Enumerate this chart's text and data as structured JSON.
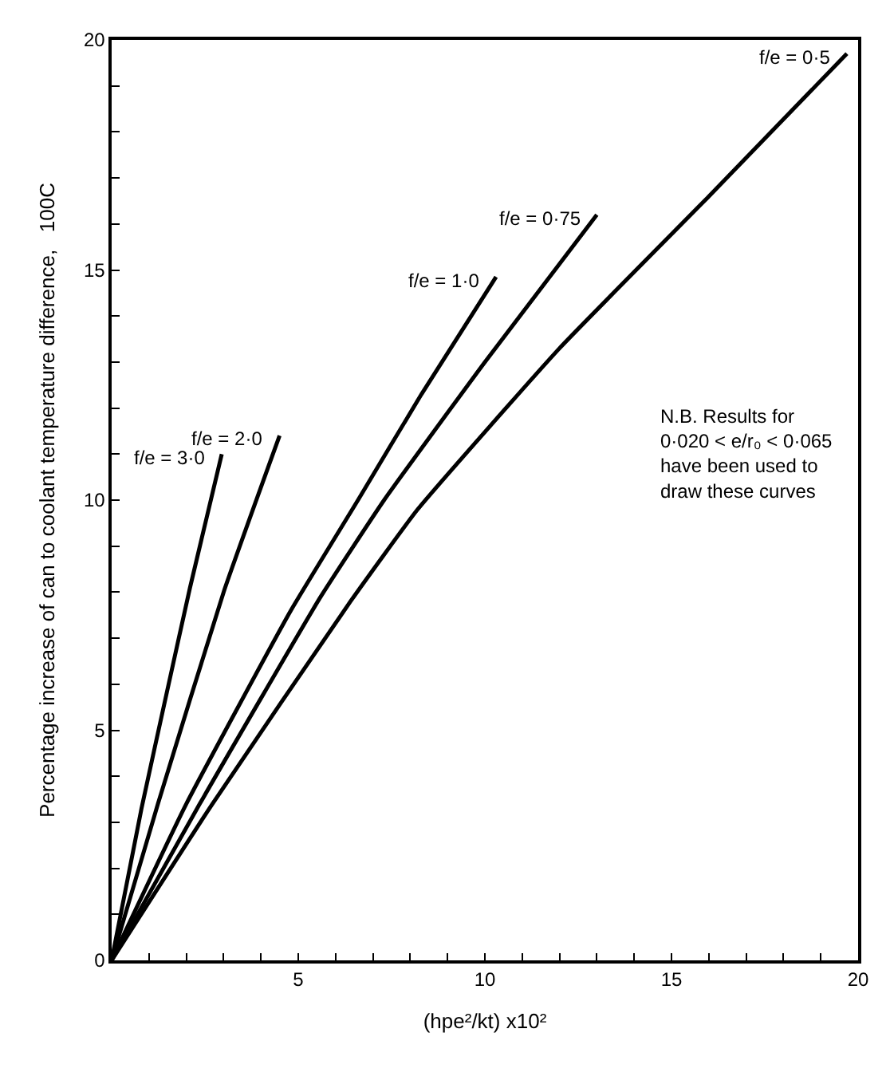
{
  "chart_data": {
    "type": "line",
    "xlabel": "(hpe²/kt) x10²",
    "ylabel": "Percentage increase of can to coolant temperature difference,   100C",
    "series": [
      {
        "name": "f/e = 3·0",
        "color": "#000000",
        "x": [
          0,
          0.8,
          1.5,
          2.1,
          2.95
        ],
        "values": [
          0,
          3.3,
          5.9,
          8.1,
          11.0
        ]
      },
      {
        "name": "f/e = 2·0",
        "color": "#000000",
        "x": [
          0,
          1.24,
          3.0,
          4.5
        ],
        "values": [
          0,
          3.4,
          8.0,
          11.4
        ]
      },
      {
        "name": "f/e = 1·0",
        "color": "#000000",
        "x": [
          0,
          2.0,
          4.8,
          6.6,
          8.3,
          10.3
        ],
        "values": [
          0,
          3.4,
          7.6,
          10.0,
          12.3,
          14.85
        ]
      },
      {
        "name": "f/e = 0·75",
        "color": "#000000",
        "x": [
          0,
          2.36,
          5.6,
          7.3,
          10.0,
          13.0
        ],
        "values": [
          0,
          3.4,
          7.9,
          10.0,
          13.0,
          16.2
        ]
      },
      {
        "name": "f/e = 0·5",
        "color": "#000000",
        "x": [
          0,
          2.7,
          6.4,
          8.2,
          12.0,
          16.0,
          19.7
        ],
        "values": [
          0,
          3.4,
          7.8,
          9.8,
          13.3,
          16.6,
          19.7
        ]
      }
    ],
    "annotations": [
      "N.B. Results for\n0·020 < e/r₀ < 0·065\nhave been used to\ndraw these curves"
    ],
    "xlim": [
      0,
      20
    ],
    "ylim": [
      0,
      20
    ],
    "xticks": [
      {
        "value": 0,
        "label": null
      },
      {
        "value": 1,
        "label": null
      },
      {
        "value": 2,
        "label": null
      },
      {
        "value": 3,
        "label": null
      },
      {
        "value": 4,
        "label": null
      },
      5,
      {
        "value": 6,
        "label": null
      },
      {
        "value": 7,
        "label": null
      },
      {
        "value": 8,
        "label": null
      },
      {
        "value": 9,
        "label": null
      },
      10,
      {
        "value": 11,
        "label": null
      },
      {
        "value": 12,
        "label": null
      },
      {
        "value": 13,
        "label": null
      },
      {
        "value": 14,
        "label": null
      },
      15,
      {
        "value": 16,
        "label": null
      },
      {
        "value": 17,
        "label": null
      },
      {
        "value": 18,
        "label": null
      },
      {
        "value": 19,
        "label": null
      },
      20
    ],
    "yticks": [
      0,
      {
        "value": 1,
        "label": null
      },
      {
        "value": 2,
        "label": null
      },
      {
        "value": 3,
        "label": null
      },
      {
        "value": 4,
        "label": null
      },
      5,
      {
        "value": 6,
        "label": null
      },
      {
        "value": 7,
        "label": null
      },
      {
        "value": 8,
        "label": null
      },
      {
        "value": 9,
        "label": null
      },
      10,
      {
        "value": 11,
        "label": null
      },
      {
        "value": 12,
        "label": null
      },
      {
        "value": 13,
        "label": null
      },
      {
        "value": 14,
        "label": null
      },
      15,
      {
        "value": 16,
        "label": null
      },
      {
        "value": 17,
        "label": null
      },
      {
        "value": 18,
        "label": null
      },
      {
        "value": 19,
        "label": null
      },
      20
    ],
    "legend": false,
    "marker": "none",
    "line_style": "solid"
  }
}
